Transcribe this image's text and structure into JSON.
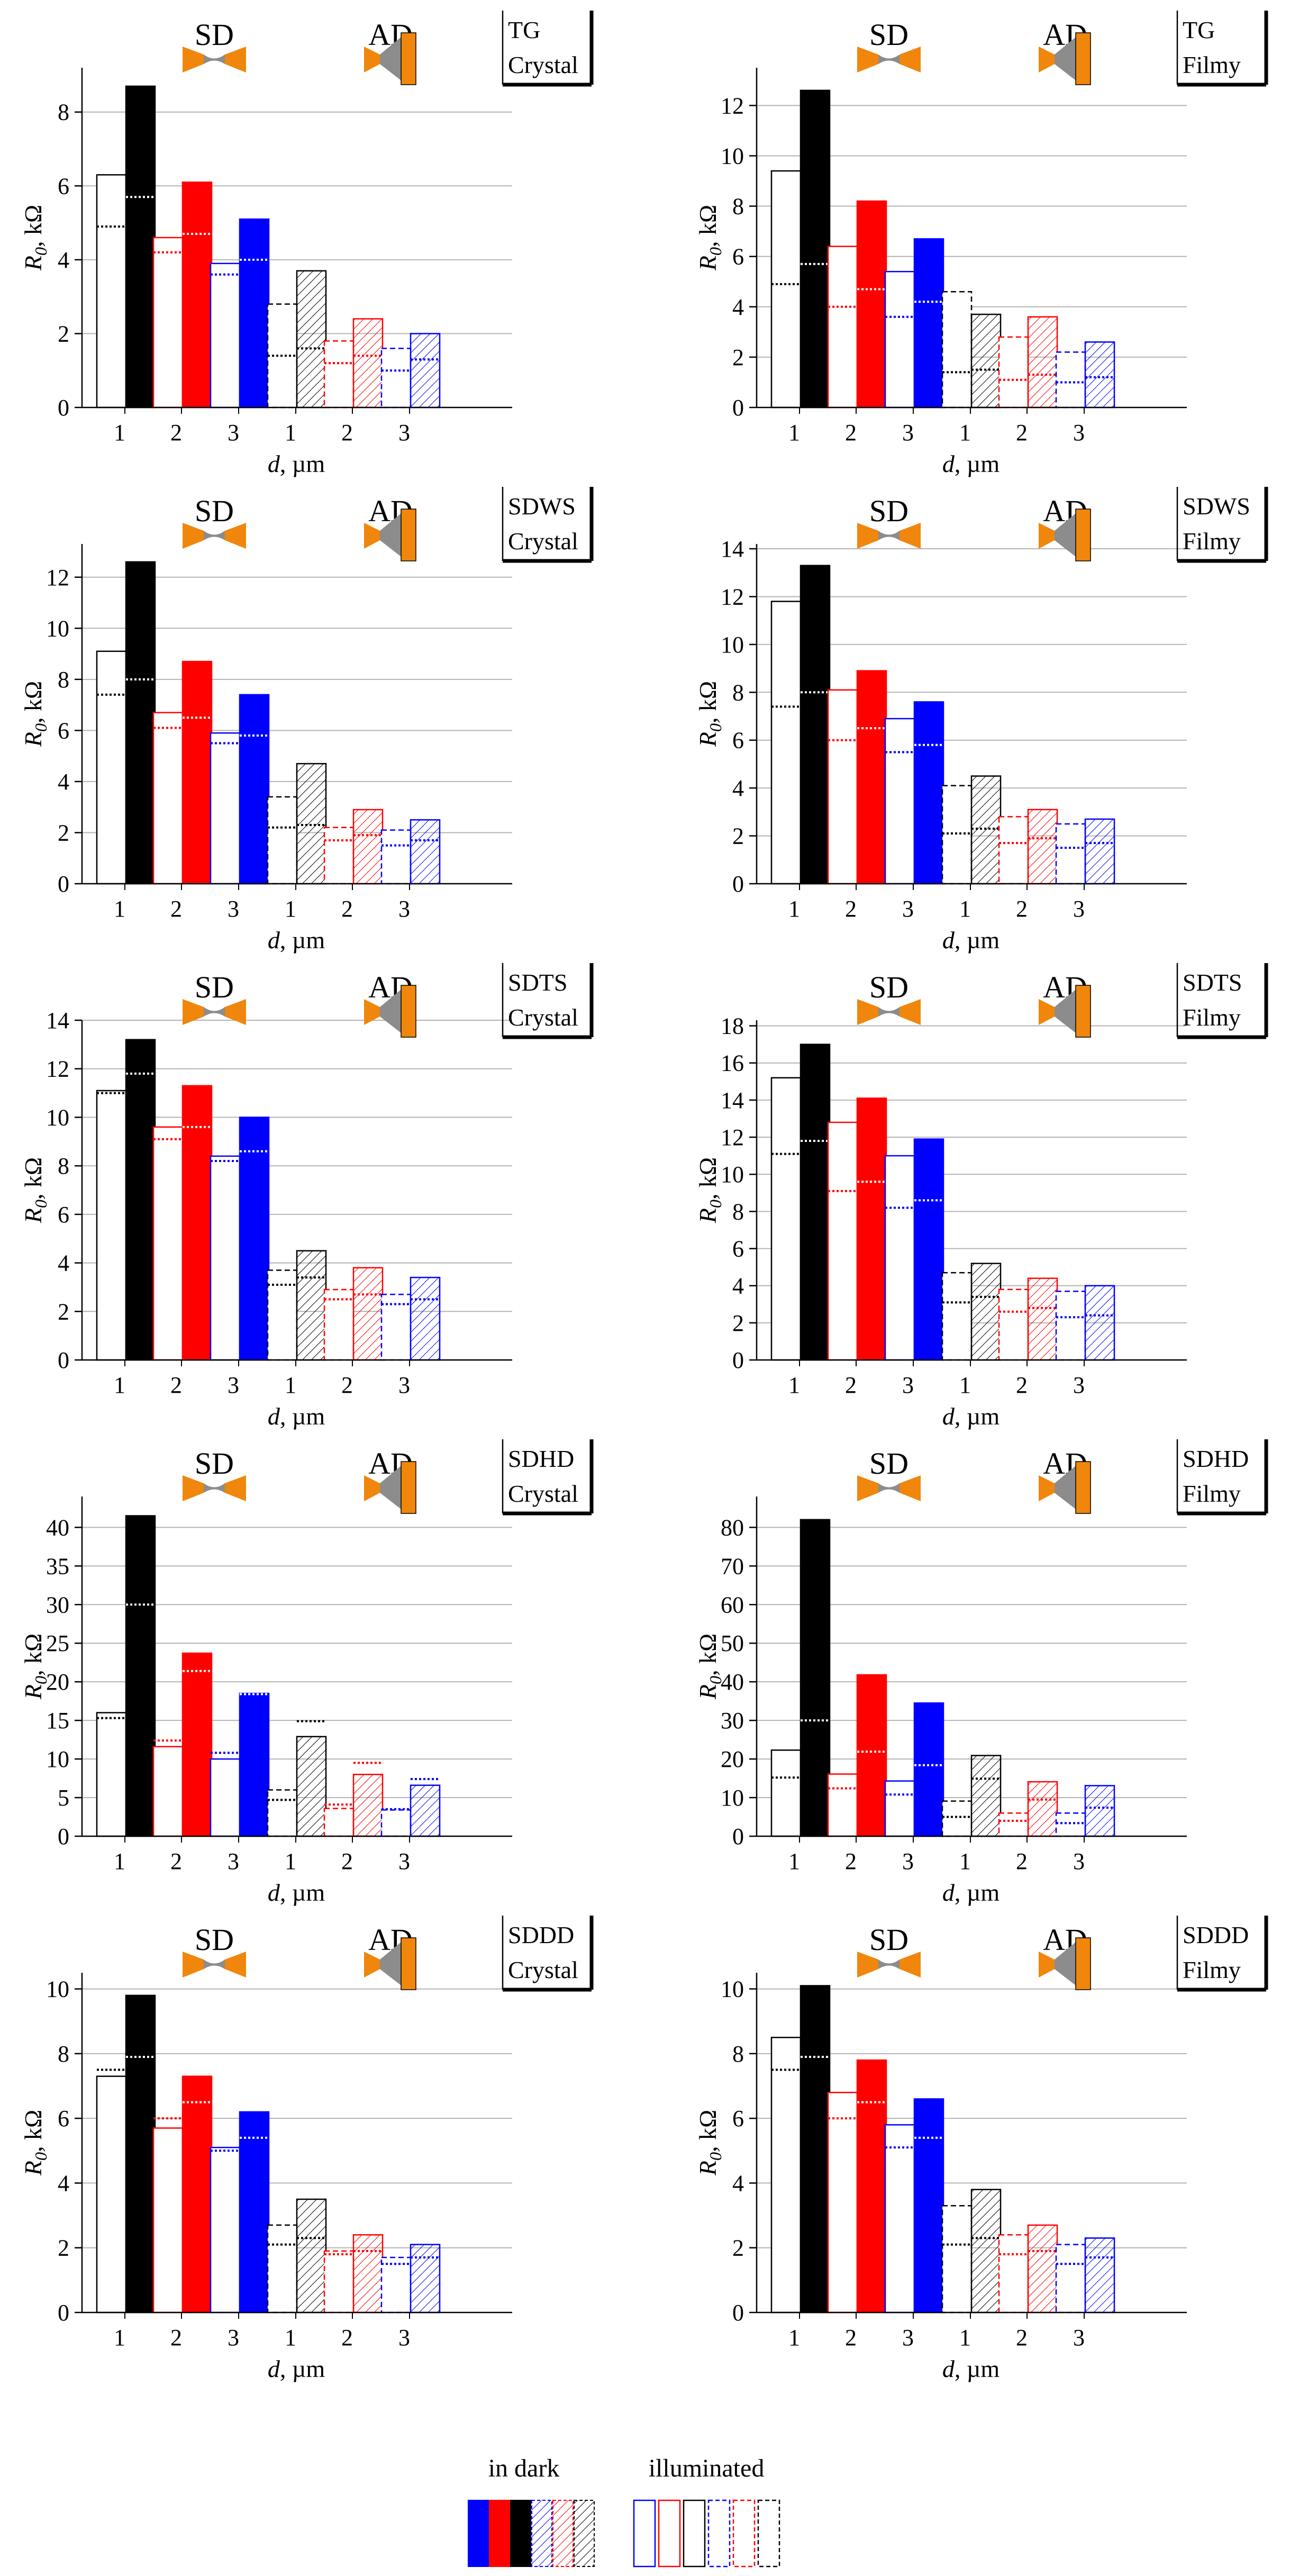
{
  "figure": {
    "title": "",
    "legend": {
      "dark_label": "in dark",
      "illuminated_label": "illuminated"
    },
    "device_labels": {
      "sd": "SD",
      "ad": "AD"
    }
  },
  "colors": {
    "black": "#000000",
    "red": "#ff0000",
    "blue": "#0000ff",
    "grid": "#b4b4b4",
    "orange": "#f0860c",
    "gray": "#8c8c8c"
  },
  "chart_data": [
    {
      "type": "bar",
      "tag": "TG",
      "phase": "Crystal",
      "xlabel_var": "d",
      "xlabel_unit": ", µm",
      "ylabel_var": "R",
      "ylabel_sub": "0",
      "ylabel_unit": ", kΩ",
      "ylim": [
        0,
        9.2
      ],
      "yticks": [
        0,
        2,
        4,
        6,
        8
      ],
      "categories": [
        "1",
        "2",
        "3",
        "1",
        "2",
        "3"
      ],
      "group": [
        "SD",
        "SD",
        "SD",
        "AD",
        "AD",
        "AD"
      ],
      "dark": [
        8.7,
        6.1,
        5.1,
        3.7,
        2.4,
        2.0
      ],
      "illum_solid": [
        6.3,
        4.6,
        3.9,
        2.8,
        1.8,
        1.6
      ],
      "illum_dotted_a": [
        4.9,
        4.2,
        3.6,
        1.4,
        1.2,
        1.0
      ],
      "illum_dotted_b": [
        5.7,
        4.7,
        4.0,
        1.6,
        1.4,
        1.3
      ]
    },
    {
      "type": "bar",
      "tag": "TG",
      "phase": "Filmy",
      "xlabel_var": "d",
      "xlabel_unit": ", µm",
      "ylabel_var": "R",
      "ylabel_sub": "0",
      "ylabel_unit": ", kΩ",
      "ylim": [
        0,
        13.5
      ],
      "yticks": [
        0,
        2,
        4,
        6,
        8,
        10,
        12
      ],
      "categories": [
        "1",
        "2",
        "3",
        "1",
        "2",
        "3"
      ],
      "group": [
        "SD",
        "SD",
        "SD",
        "AD",
        "AD",
        "AD"
      ],
      "dark": [
        12.6,
        8.2,
        6.7,
        3.7,
        3.6,
        2.6
      ],
      "illum_solid": [
        9.4,
        6.4,
        5.4,
        4.6,
        2.8,
        2.2
      ],
      "illum_dotted_a": [
        4.9,
        4.0,
        3.6,
        1.4,
        1.1,
        1.0
      ],
      "illum_dotted_b": [
        5.7,
        4.7,
        4.2,
        1.5,
        1.3,
        1.2
      ]
    },
    {
      "type": "bar",
      "tag": "SDWS",
      "phase": "Crystal",
      "xlabel_var": "d",
      "xlabel_unit": ", µm",
      "ylabel_var": "R",
      "ylabel_sub": "0",
      "ylabel_unit": ", kΩ",
      "ylim": [
        0,
        13.3
      ],
      "yticks": [
        0,
        2,
        4,
        6,
        8,
        10,
        12
      ],
      "categories": [
        "1",
        "2",
        "3",
        "1",
        "2",
        "3"
      ],
      "group": [
        "SD",
        "SD",
        "SD",
        "AD",
        "AD",
        "AD"
      ],
      "dark": [
        12.6,
        8.7,
        7.4,
        4.7,
        2.9,
        2.5
      ],
      "illum_solid": [
        9.1,
        6.7,
        5.9,
        3.4,
        2.2,
        2.1
      ],
      "illum_dotted_a": [
        7.4,
        6.1,
        5.5,
        2.2,
        1.7,
        1.5
      ],
      "illum_dotted_b": [
        8.0,
        6.5,
        5.8,
        2.3,
        1.9,
        1.7
      ]
    },
    {
      "type": "bar",
      "tag": "SDWS",
      "phase": "Filmy",
      "xlabel_var": "d",
      "xlabel_unit": ", µm",
      "ylabel_var": "R",
      "ylabel_sub": "0",
      "ylabel_unit": ", kΩ",
      "ylim": [
        0,
        14.2
      ],
      "yticks": [
        0,
        2,
        4,
        6,
        8,
        10,
        12,
        14
      ],
      "categories": [
        "1",
        "2",
        "3",
        "1",
        "2",
        "3"
      ],
      "group": [
        "SD",
        "SD",
        "SD",
        "AD",
        "AD",
        "AD"
      ],
      "dark": [
        13.3,
        8.9,
        7.6,
        4.5,
        3.1,
        2.7
      ],
      "illum_solid": [
        11.8,
        8.1,
        6.9,
        4.1,
        2.8,
        2.5
      ],
      "illum_dotted_a": [
        7.4,
        6.0,
        5.5,
        2.1,
        1.7,
        1.5
      ],
      "illum_dotted_b": [
        8.0,
        6.5,
        5.8,
        2.3,
        1.9,
        1.7
      ]
    },
    {
      "type": "bar",
      "tag": "SDTS",
      "phase": "Crystal",
      "xlabel_var": "d",
      "xlabel_unit": ", µm",
      "ylabel_var": "R",
      "ylabel_sub": "0",
      "ylabel_unit": ", kΩ",
      "ylim": [
        0,
        14
      ],
      "yticks": [
        0,
        2,
        4,
        6,
        8,
        10,
        12,
        14
      ],
      "categories": [
        "1",
        "2",
        "3",
        "1",
        "2",
        "3"
      ],
      "group": [
        "SD",
        "SD",
        "SD",
        "AD",
        "AD",
        "AD"
      ],
      "dark": [
        13.2,
        11.3,
        10.0,
        4.5,
        3.8,
        3.4
      ],
      "illum_solid": [
        11.1,
        9.6,
        8.4,
        3.7,
        2.9,
        2.7
      ],
      "illum_dotted_a": [
        11.0,
        9.1,
        8.2,
        3.1,
        2.5,
        2.3
      ],
      "illum_dotted_b": [
        11.8,
        9.6,
        8.6,
        3.4,
        2.7,
        2.5
      ]
    },
    {
      "type": "bar",
      "tag": "SDTS",
      "phase": "Filmy",
      "xlabel_var": "d",
      "xlabel_unit": ", µm",
      "ylabel_var": "R",
      "ylabel_sub": "0",
      "ylabel_unit": ", kΩ",
      "ylim": [
        0,
        18.3
      ],
      "yticks": [
        0,
        2,
        4,
        6,
        8,
        10,
        12,
        14,
        16,
        18
      ],
      "categories": [
        "1",
        "2",
        "3",
        "1",
        "2",
        "3"
      ],
      "group": [
        "SD",
        "SD",
        "SD",
        "AD",
        "AD",
        "AD"
      ],
      "dark": [
        17.0,
        14.1,
        11.9,
        5.2,
        4.4,
        4.0
      ],
      "illum_solid": [
        15.2,
        12.8,
        11.0,
        4.7,
        3.8,
        3.7
      ],
      "illum_dotted_a": [
        11.1,
        9.1,
        8.2,
        3.1,
        2.6,
        2.3
      ],
      "illum_dotted_b": [
        11.8,
        9.6,
        8.6,
        3.4,
        2.8,
        2.4
      ]
    },
    {
      "type": "bar",
      "tag": "SDHD",
      "phase": "Crystal",
      "xlabel_var": "d",
      "xlabel_unit": ", µm",
      "ylabel_var": "R",
      "ylabel_sub": "0",
      "ylabel_unit": ", kΩ",
      "ylim": [
        0,
        44
      ],
      "yticks": [
        0,
        5,
        10,
        15,
        20,
        25,
        30,
        35,
        40
      ],
      "categories": [
        "1",
        "2",
        "3",
        "1",
        "2",
        "3"
      ],
      "group": [
        "SD",
        "SD",
        "SD",
        "AD",
        "AD",
        "AD"
      ],
      "dark": [
        41.5,
        23.7,
        18.5,
        12.9,
        8.0,
        6.6
      ],
      "illum_solid": [
        16.0,
        11.6,
        10.0,
        6.0,
        3.6,
        3.4
      ],
      "illum_dotted_a": [
        15.3,
        12.4,
        10.8,
        4.7,
        4.1,
        3.5
      ],
      "illum_dotted_b": [
        30.0,
        21.4,
        18.4,
        14.9,
        9.5,
        7.4
      ]
    },
    {
      "type": "bar",
      "tag": "SDHD",
      "phase": "Filmy",
      "xlabel_var": "d",
      "xlabel_unit": ", µm",
      "ylabel_var": "R",
      "ylabel_sub": "0",
      "ylabel_unit": ", kΩ",
      "ylim": [
        0,
        88
      ],
      "yticks": [
        0,
        10,
        20,
        30,
        40,
        50,
        60,
        70,
        80
      ],
      "categories": [
        "1",
        "2",
        "3",
        "1",
        "2",
        "3"
      ],
      "group": [
        "SD",
        "SD",
        "SD",
        "AD",
        "AD",
        "AD"
      ],
      "dark": [
        82.0,
        41.8,
        34.5,
        20.9,
        14.1,
        13.1
      ],
      "illum_solid": [
        22.3,
        16.1,
        14.3,
        9.1,
        6.0,
        6.0
      ],
      "illum_dotted_a": [
        15.2,
        12.4,
        10.8,
        5.0,
        4.0,
        3.4
      ],
      "illum_dotted_b": [
        30.0,
        21.9,
        18.4,
        14.9,
        9.5,
        7.4
      ]
    },
    {
      "type": "bar",
      "tag": "SDDD",
      "phase": "Crystal",
      "xlabel_var": "d",
      "xlabel_unit": ", µm",
      "ylabel_var": "R",
      "ylabel_sub": "0",
      "ylabel_unit": ", kΩ",
      "ylim": [
        0,
        10.5
      ],
      "yticks": [
        0,
        2,
        4,
        6,
        8,
        10
      ],
      "categories": [
        "1",
        "2",
        "3",
        "1",
        "2",
        "3"
      ],
      "group": [
        "SD",
        "SD",
        "SD",
        "AD",
        "AD",
        "AD"
      ],
      "dark": [
        9.8,
        7.3,
        6.2,
        3.5,
        2.4,
        2.1
      ],
      "illum_solid": [
        7.3,
        5.7,
        5.1,
        2.7,
        1.9,
        1.7
      ],
      "illum_dotted_a": [
        7.5,
        6.0,
        5.0,
        2.1,
        1.8,
        1.5
      ],
      "illum_dotted_b": [
        7.9,
        6.5,
        5.4,
        2.3,
        1.9,
        1.7
      ]
    },
    {
      "type": "bar",
      "tag": "SDDD",
      "phase": "Filmy",
      "xlabel_var": "d",
      "xlabel_unit": ", µm",
      "ylabel_var": "R",
      "ylabel_sub": "0",
      "ylabel_unit": ", kΩ",
      "ylim": [
        0,
        10.5
      ],
      "yticks": [
        0,
        2,
        4,
        6,
        8,
        10
      ],
      "categories": [
        "1",
        "2",
        "3",
        "1",
        "2",
        "3"
      ],
      "group": [
        "SD",
        "SD",
        "SD",
        "AD",
        "AD",
        "AD"
      ],
      "dark": [
        10.1,
        7.8,
        6.6,
        3.8,
        2.7,
        2.3
      ],
      "illum_solid": [
        8.5,
        6.8,
        5.8,
        3.3,
        2.4,
        2.1
      ],
      "illum_dotted_a": [
        7.5,
        6.0,
        5.1,
        2.1,
        1.8,
        1.5
      ],
      "illum_dotted_b": [
        7.9,
        6.5,
        5.4,
        2.3,
        1.9,
        1.7
      ]
    }
  ]
}
